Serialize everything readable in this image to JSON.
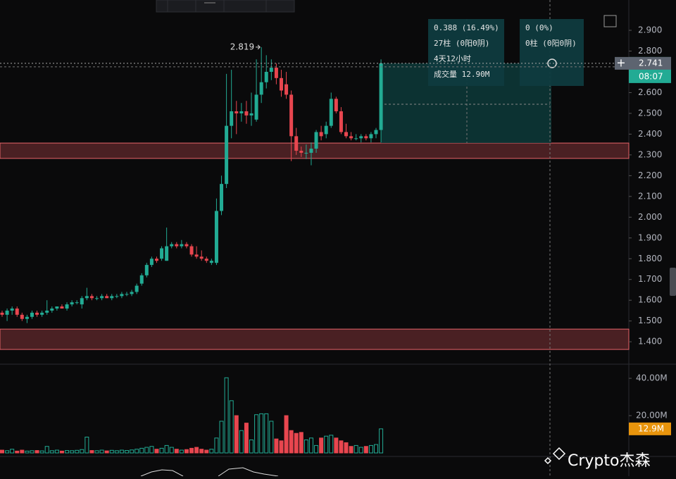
{
  "chart_data": {
    "type": "candlestick",
    "candles": [
      [
        1.54,
        1.55,
        1.52,
        1.53
      ],
      [
        1.53,
        1.56,
        1.5,
        1.55
      ],
      [
        1.55,
        1.57,
        1.53,
        1.56
      ],
      [
        1.56,
        1.57,
        1.52,
        1.53
      ],
      [
        1.53,
        1.54,
        1.5,
        1.51
      ],
      [
        1.51,
        1.53,
        1.49,
        1.52
      ],
      [
        1.52,
        1.55,
        1.51,
        1.54
      ],
      [
        1.54,
        1.55,
        1.52,
        1.53
      ],
      [
        1.53,
        1.55,
        1.52,
        1.54
      ],
      [
        1.54,
        1.6,
        1.53,
        1.55
      ],
      [
        1.55,
        1.57,
        1.54,
        1.56
      ],
      [
        1.56,
        1.57,
        1.55,
        1.57
      ],
      [
        1.57,
        1.58,
        1.56,
        1.56
      ],
      [
        1.56,
        1.59,
        1.55,
        1.58
      ],
      [
        1.58,
        1.6,
        1.57,
        1.59
      ],
      [
        1.59,
        1.6,
        1.58,
        1.59
      ],
      [
        1.58,
        1.62,
        1.56,
        1.61
      ],
      [
        1.61,
        1.66,
        1.6,
        1.62
      ],
      [
        1.62,
        1.63,
        1.6,
        1.61
      ],
      [
        1.61,
        1.62,
        1.6,
        1.61
      ],
      [
        1.61,
        1.63,
        1.6,
        1.62
      ],
      [
        1.62,
        1.63,
        1.61,
        1.61
      ],
      [
        1.61,
        1.63,
        1.6,
        1.62
      ],
      [
        1.62,
        1.63,
        1.61,
        1.62
      ],
      [
        1.62,
        1.64,
        1.61,
        1.63
      ],
      [
        1.63,
        1.64,
        1.62,
        1.63
      ],
      [
        1.63,
        1.65,
        1.62,
        1.64
      ],
      [
        1.64,
        1.68,
        1.63,
        1.67
      ],
      [
        1.68,
        1.73,
        1.67,
        1.72
      ],
      [
        1.72,
        1.78,
        1.71,
        1.77
      ],
      [
        1.77,
        1.81,
        1.76,
        1.8
      ],
      [
        1.8,
        1.81,
        1.78,
        1.79
      ],
      [
        1.8,
        1.86,
        1.79,
        1.85
      ],
      [
        1.79,
        1.95,
        1.79,
        1.86
      ],
      [
        1.86,
        1.88,
        1.85,
        1.87
      ],
      [
        1.87,
        1.88,
        1.85,
        1.86
      ],
      [
        1.86,
        1.89,
        1.85,
        1.87
      ],
      [
        1.87,
        1.88,
        1.85,
        1.86
      ],
      [
        1.86,
        1.87,
        1.81,
        1.82
      ],
      [
        1.82,
        1.86,
        1.8,
        1.81
      ],
      [
        1.81,
        1.84,
        1.79,
        1.8
      ],
      [
        1.8,
        1.81,
        1.78,
        1.79
      ],
      [
        1.78,
        1.8,
        1.77,
        1.79
      ],
      [
        1.78,
        2.09,
        1.77,
        2.03
      ],
      [
        2.03,
        2.2,
        2.01,
        2.16
      ],
      [
        2.16,
        2.69,
        2.14,
        2.44
      ],
      [
        2.44,
        2.71,
        2.38,
        2.51
      ],
      [
        2.51,
        2.56,
        2.4,
        2.5
      ],
      [
        2.5,
        2.55,
        2.46,
        2.51
      ],
      [
        2.51,
        2.56,
        2.45,
        2.49
      ],
      [
        2.49,
        2.6,
        2.44,
        2.5
      ],
      [
        2.47,
        2.76,
        2.46,
        2.59
      ],
      [
        2.59,
        2.819,
        2.55,
        2.65
      ],
      [
        2.65,
        2.78,
        2.62,
        2.7
      ],
      [
        2.7,
        2.76,
        2.66,
        2.72
      ],
      [
        2.72,
        2.74,
        2.64,
        2.67
      ],
      [
        2.67,
        2.71,
        2.58,
        2.61
      ],
      [
        2.64,
        2.7,
        2.57,
        2.59
      ],
      [
        2.59,
        2.61,
        2.27,
        2.39
      ],
      [
        2.39,
        2.43,
        2.3,
        2.32
      ],
      [
        2.32,
        2.34,
        2.29,
        2.31
      ],
      [
        2.31,
        2.35,
        2.28,
        2.31
      ],
      [
        2.31,
        2.36,
        2.25,
        2.33
      ],
      [
        2.33,
        2.42,
        2.31,
        2.41
      ],
      [
        2.41,
        2.44,
        2.37,
        2.39
      ],
      [
        2.4,
        2.46,
        2.38,
        2.44
      ],
      [
        2.44,
        2.6,
        2.43,
        2.57
      ],
      [
        2.57,
        2.58,
        2.5,
        2.51
      ],
      [
        2.51,
        2.53,
        2.4,
        2.41
      ],
      [
        2.41,
        2.45,
        2.38,
        2.39
      ],
      [
        2.39,
        2.41,
        2.37,
        2.38
      ],
      [
        2.38,
        2.4,
        2.37,
        2.38
      ],
      [
        2.38,
        2.4,
        2.36,
        2.39
      ],
      [
        2.39,
        2.4,
        2.37,
        2.38
      ],
      [
        2.38,
        2.41,
        2.36,
        2.4
      ],
      [
        2.4,
        2.43,
        2.38,
        2.42
      ],
      [
        2.42,
        2.76,
        2.36,
        2.741
      ]
    ],
    "volumes": [
      1.5,
      1.2,
      2.0,
      1.0,
      1.5,
      1.0,
      1.2,
      1.3,
      1.1,
      3.5,
      1.2,
      1.5,
      1.0,
      1.3,
      1.2,
      1.4,
      1.8,
      8.5,
      1.3,
      1.2,
      1.5,
      1.1,
      1.4,
      1.2,
      1.5,
      1.3,
      1.6,
      2.0,
      2.5,
      3.0,
      3.5,
      2.0,
      2.5,
      4.0,
      3.0,
      2.0,
      1.5,
      1.8,
      2.5,
      3.0,
      2.0,
      1.5,
      2.0,
      8.0,
      17.0,
      40.3,
      28.0,
      20.0,
      12.0,
      16.0,
      7.0,
      20.5,
      21.0,
      21.0,
      17.0,
      7.5,
      6.5,
      20.0,
      12.0,
      10.5,
      11.0,
      7.0,
      8.0,
      4.0,
      8.0,
      9.0,
      9.5,
      8.0,
      6.5,
      5.5,
      3.5,
      4.0,
      3.0,
      3.5,
      4.0,
      4.5,
      12.9
    ],
    "colors": {
      "up": "#22ab94",
      "down": "#e8464f"
    },
    "ylim": [
      1.292,
      3.046
    ],
    "yticks": [
      {
        "value": 2.9,
        "label": "2.900"
      },
      {
        "value": 2.8,
        "label": "2.800"
      },
      {
        "value": 2.7,
        "label": "2.700"
      },
      {
        "value": 2.6,
        "label": "2.600"
      },
      {
        "value": 2.5,
        "label": "2.500"
      },
      {
        "value": 2.4,
        "label": "2.400"
      },
      {
        "value": 2.3,
        "label": "2.300"
      },
      {
        "value": 2.2,
        "label": "2.200"
      },
      {
        "value": 2.1,
        "label": "2.100"
      },
      {
        "value": 2.0,
        "label": "2.000"
      },
      {
        "value": 1.9,
        "label": "1.900"
      },
      {
        "value": 1.8,
        "label": "1.800"
      },
      {
        "value": 1.7,
        "label": "1.700"
      },
      {
        "value": 1.6,
        "label": "1.600"
      },
      {
        "value": 1.5,
        "label": "1.500"
      },
      {
        "value": 1.4,
        "label": "1.400"
      }
    ],
    "vlim": [
      0,
      47.2
    ],
    "vticks": [
      {
        "value": 40,
        "label": "40.00M"
      },
      {
        "value": 20,
        "label": "20.00M"
      }
    ],
    "zones": [
      [
        2.283,
        2.357
      ],
      [
        1.363,
        1.461
      ]
    ],
    "last_price": {
      "value": 2.741,
      "label": "2.741"
    },
    "countdown": "08:07",
    "last_volume": {
      "value": 12.9,
      "label": "12.9M"
    },
    "high_marker": {
      "value": 2.819,
      "label": "2.819"
    },
    "measure": [
      "0.388 (16.49%)",
      "27柱 (0阳0阴)",
      "4天12小时",
      "成交量 12.90M"
    ],
    "measure_2": [
      "0 (0%)",
      "0柱 (0阳0阴)"
    ],
    "watermark": "Crypto杰森"
  }
}
